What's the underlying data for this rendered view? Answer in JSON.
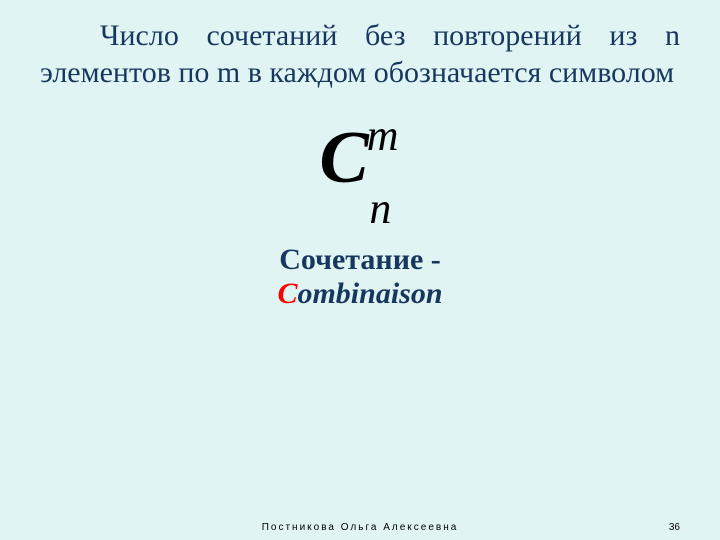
{
  "colors": {
    "background": "#e1f4f4",
    "text_main": "#17375e",
    "formula": "#000000",
    "accent_red": "#ff0000",
    "footer": "#000000"
  },
  "paragraph": "Число сочетаний без повторений из n элементов по m в каждом обозначается символом",
  "formula": {
    "base": "C",
    "sup": "m",
    "sub": "n"
  },
  "caption": {
    "line1": "Сочетание   -",
    "line2_prefix_letter": "C",
    "line2_rest": "ombinaison"
  },
  "footer": {
    "author": "Постникова   Ольга   Алексеевна",
    "page": "36"
  }
}
